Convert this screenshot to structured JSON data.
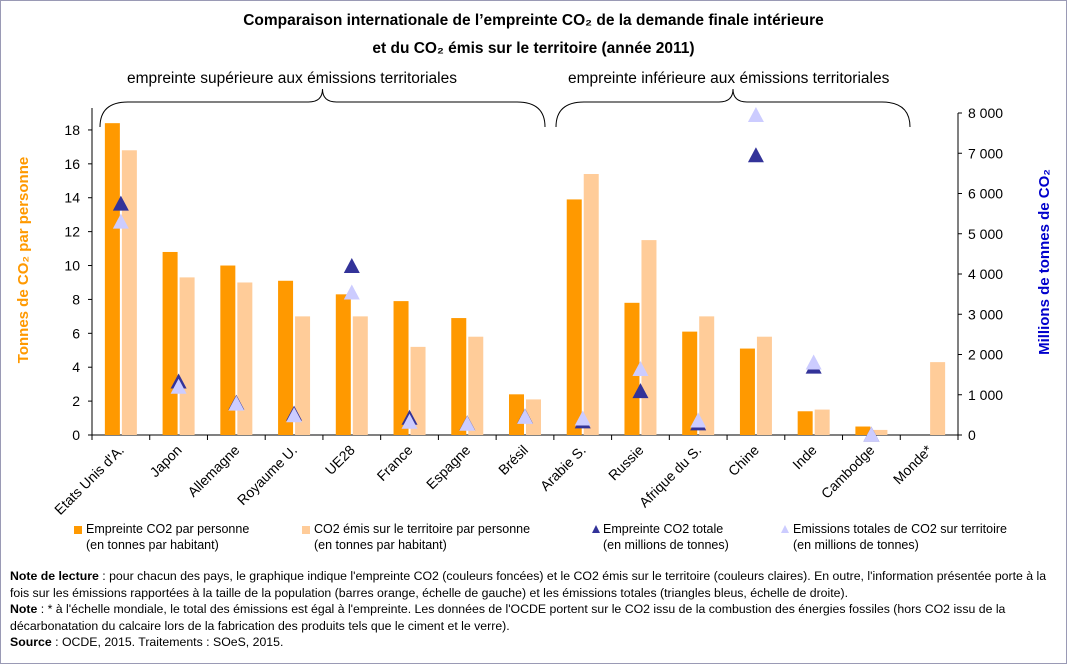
{
  "title_line1": "Comparaison internationale de l’empreinte CO₂ de la demande finale intérieure",
  "title_line2": "et du CO₂ émis sur le territoire (année 2011)",
  "brace_left": "empreinte supérieure aux émissions territoriales",
  "brace_right": "empreinte inférieure aux émissions territoriales",
  "colors": {
    "dark_bar": "#FF9900",
    "light_bar": "#FFCC99",
    "dark_tri": "#333399",
    "light_tri": "#CCCCFF",
    "left_axis": "#FF9900",
    "right_axis": "#0000CC"
  },
  "chart_data": {
    "type": "bar",
    "categories": [
      "Etats Unis d'A.",
      "Japon",
      "Allemagne",
      "Royaume U.",
      "UE28",
      "France",
      "Espagne",
      "Brésil",
      "Arabie S.",
      "Russie",
      "Afrique du S.",
      "Chine",
      "Inde",
      "Cambodge",
      "Monde*"
    ],
    "ylabel": "Tonnes de CO₂ par personne",
    "ylabel2": "Millions de tonnes de CO₂",
    "ylim": [
      0,
      19
    ],
    "yticks": [
      0,
      2,
      4,
      6,
      8,
      10,
      12,
      14,
      16,
      18
    ],
    "ylim2": [
      0,
      8000
    ],
    "yticks2": [
      "0",
      "1 000",
      "2 000",
      "3 000",
      "4 000",
      "5 000",
      "6 000",
      "7 000",
      "8 000"
    ],
    "yticks2_values": [
      0,
      1000,
      2000,
      3000,
      4000,
      5000,
      6000,
      7000,
      8000
    ],
    "series": [
      {
        "name": "Empreinte CO2 par personne",
        "name2": "(en tonnes par habitant)",
        "kind": "bar",
        "color": "#FF9900",
        "axis": "left",
        "values": [
          18.4,
          10.8,
          10.0,
          9.1,
          8.3,
          7.9,
          6.9,
          2.4,
          13.9,
          7.8,
          6.1,
          5.1,
          1.4,
          0.5,
          null
        ]
      },
      {
        "name": "CO2 émis sur le territoire par personne",
        "name2": "(en tonnes par habitant)",
        "kind": "bar",
        "color": "#FFCC99",
        "axis": "left",
        "values": [
          16.8,
          9.3,
          9.0,
          7.0,
          7.0,
          5.2,
          5.8,
          2.1,
          15.4,
          11.5,
          7.0,
          5.8,
          1.5,
          0.3,
          4.3
        ]
      },
      {
        "name": "Empreinte CO2 totale",
        "name2": "(en millions de tonnes)",
        "kind": "triangle",
        "color": "#333399",
        "axis": "right",
        "values": [
          5750,
          1330,
          800,
          530,
          4200,
          430,
          290,
          460,
          340,
          1090,
          290,
          6950,
          1700,
          10,
          null
        ]
      },
      {
        "name": "Emissions totales de CO2 sur territoire",
        "name2": "(en millions de tonnes)",
        "kind": "triangle",
        "color": "#CCCCFF",
        "axis": "right",
        "values": [
          5300,
          1200,
          780,
          490,
          3540,
          330,
          280,
          450,
          410,
          1640,
          360,
          7950,
          1800,
          10,
          null
        ]
      }
    ]
  },
  "notes": {
    "line1_label": "Note de lecture",
    "line1_text": " : pour chacun des pays, le graphique indique l'empreinte CO2 (couleurs foncées) et le CO2 émis sur le territoire (couleurs claires). En outre, l'information présentée porte à la fois sur les émissions rapportées à la taille de la population (barres orange, échelle de gauche) et les émissions totales (triangles bleus, échelle de droite).",
    "line2_label": "Note",
    "line2_text": " : * à l'échelle mondiale, le total des émissions est égal à l'empreinte. Les données de l'OCDE portent sur le CO2 issu de la combustion des énergies fossiles (hors CO2 issu de la décarbonatation du calcaire lors de la fabrication des produits tels que le ciment et le verre).",
    "line3_label": "Source",
    "line3_text": " : OCDE, 2015. Traitements : SOeS, 2015."
  }
}
